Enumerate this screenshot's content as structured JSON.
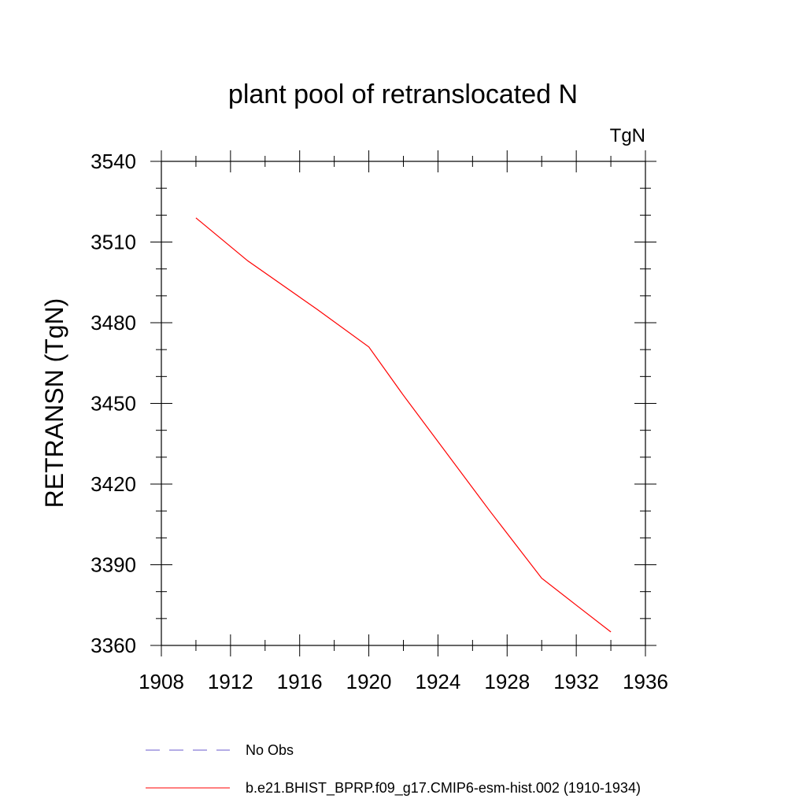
{
  "chart_data": {
    "type": "line",
    "title": "plant pool of retranslocated N",
    "units_label": "TgN",
    "xlabel": "",
    "ylabel": "RETRANSN  (TgN)",
    "xlim": [
      1908,
      1936
    ],
    "ylim": [
      3360,
      3540
    ],
    "xticks": [
      1908,
      1912,
      1916,
      1920,
      1924,
      1928,
      1932,
      1936
    ],
    "yticks": [
      3360,
      3390,
      3420,
      3450,
      3480,
      3510,
      3540
    ],
    "xtick_labels": [
      "1908",
      "1912",
      "1916",
      "1920",
      "1924",
      "1928",
      "1932",
      "1936"
    ],
    "ytick_labels": [
      "3360",
      "3390",
      "3420",
      "3450",
      "3480",
      "3510",
      "3540"
    ],
    "grid": false,
    "legend_position": "bottom",
    "series": [
      {
        "name": "b.e21.BHIST_BPRP.f09_g17.CMIP6-esm-hist.002 (1910-1934)",
        "color": "#ff0000",
        "style": "solid",
        "x": [
          1910,
          1913,
          1917,
          1920,
          1922,
          1927,
          1930,
          1932,
          1934
        ],
        "y": [
          3519,
          3503,
          3485,
          3471,
          3453,
          3410,
          3385,
          3375,
          3365
        ]
      }
    ],
    "legend": [
      {
        "label": "No Obs",
        "color": "#6a5acd",
        "style": "dashed"
      },
      {
        "label": "b.e21.BHIST_BPRP.f09_g17.CMIP6-esm-hist.002 (1910-1934)",
        "color": "#ff0000",
        "style": "solid"
      }
    ]
  }
}
